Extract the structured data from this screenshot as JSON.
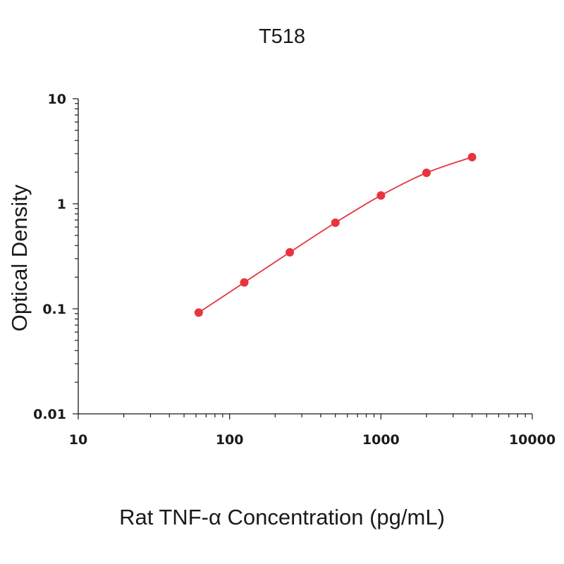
{
  "chart_data": {
    "type": "scatter",
    "title": "T518",
    "xlabel": "Rat TNF-α Concentration (pg/mL)",
    "ylabel": "Optical Density",
    "x_scale": "log",
    "y_scale": "log",
    "xlim": [
      10,
      10000
    ],
    "ylim": [
      0.01,
      10
    ],
    "x_ticks": [
      10,
      100,
      1000,
      10000
    ],
    "x_tick_labels": [
      "10",
      "100",
      "1000",
      "10000"
    ],
    "y_ticks": [
      0.01,
      0.1,
      1,
      10
    ],
    "y_tick_labels": [
      "0.01",
      "0.1",
      "1",
      "10"
    ],
    "grid": false,
    "legend": false,
    "series": [
      {
        "color": "#e8343f",
        "x": [
          62.5,
          125,
          250,
          500,
          1000,
          2000,
          4000
        ],
        "y": [
          0.092,
          0.178,
          0.345,
          0.66,
          1.2,
          1.97,
          2.78
        ],
        "fit_curve": true
      }
    ]
  }
}
